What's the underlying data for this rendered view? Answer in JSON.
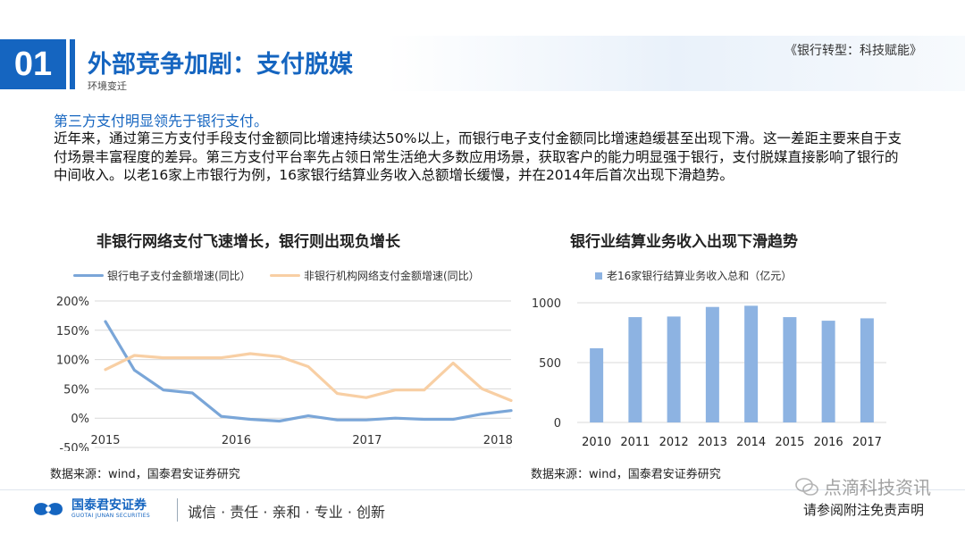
{
  "header": {
    "number": "01",
    "title": "外部竞争加剧：支付脱媒",
    "subtitle": "环境变迁",
    "doc_title": "《银行转型：科技赋能》"
  },
  "body": {
    "lead": "第三方支付明显领先于银行支付。",
    "paragraph": "近年来，通过第三方支付手段支付金额同比增速持续达50%以上，而银行电子支付金额同比增速趋缓甚至出现下滑。这一差距主要来自于支付场景丰富程度的差异。第三方支付平台率先占领日常生活绝大多数应用场景，获取客户的能力明显强于银行，支付脱媒直接影响了银行的中间收入。以老16家上市银行为例，16家银行结算业务收入总额增长缓慢，并在2014年后首次出现下滑趋势。"
  },
  "chart_data": [
    {
      "type": "line",
      "title": "非银行网络支付飞速增长，银行则出现负增长",
      "x_tick_labels": [
        "2015",
        "2016",
        "2017",
        "2018"
      ],
      "y_tick_labels": [
        "200%",
        "150%",
        "100%",
        "50%",
        "0%",
        "-50%"
      ],
      "ylim": [
        -50,
        200
      ],
      "y_unit": "%",
      "grid": true,
      "legend_position": "top",
      "source": "数据来源：wind，国泰君安证券研究",
      "series": [
        {
          "name": "银行电子支付金额增速(同比）",
          "color": "#7aa6d8",
          "values": [
            165,
            82,
            48,
            43,
            3,
            -2,
            -5,
            4,
            -3,
            -3,
            0,
            -2,
            -2,
            7,
            13
          ]
        },
        {
          "name": "非银行机构网络支付金额增速(同比）",
          "color": "#f8cfa4",
          "values": [
            83,
            107,
            103,
            103,
            103,
            110,
            105,
            88,
            42,
            35,
            48,
            48,
            94,
            50,
            30
          ]
        }
      ]
    },
    {
      "type": "bar",
      "title": "银行业结算业务收入出现下滑趋势",
      "categories": [
        "2010",
        "2011",
        "2012",
        "2013",
        "2014",
        "2015",
        "2016",
        "2017"
      ],
      "y_tick_labels": [
        "1000",
        "500",
        "0"
      ],
      "ylim": [
        0,
        1000
      ],
      "legend_position": "top",
      "source": "数据来源：wind，国泰君安证券研究",
      "series": [
        {
          "name": "老16家银行结算业务收入总和（亿元）",
          "color": "#8db3e2",
          "values": [
            620,
            880,
            885,
            965,
            975,
            880,
            850,
            870
          ]
        }
      ]
    }
  ],
  "footer": {
    "logo_cn": "国泰君安证券",
    "logo_en": "GUOTAI JUNAN SECURITIES",
    "slogan": "诚信 · 责任 · 亲和 · 专业 · 创新",
    "disclaimer": "请参阅附注免责声明",
    "watermark": "点滴科技资讯"
  }
}
